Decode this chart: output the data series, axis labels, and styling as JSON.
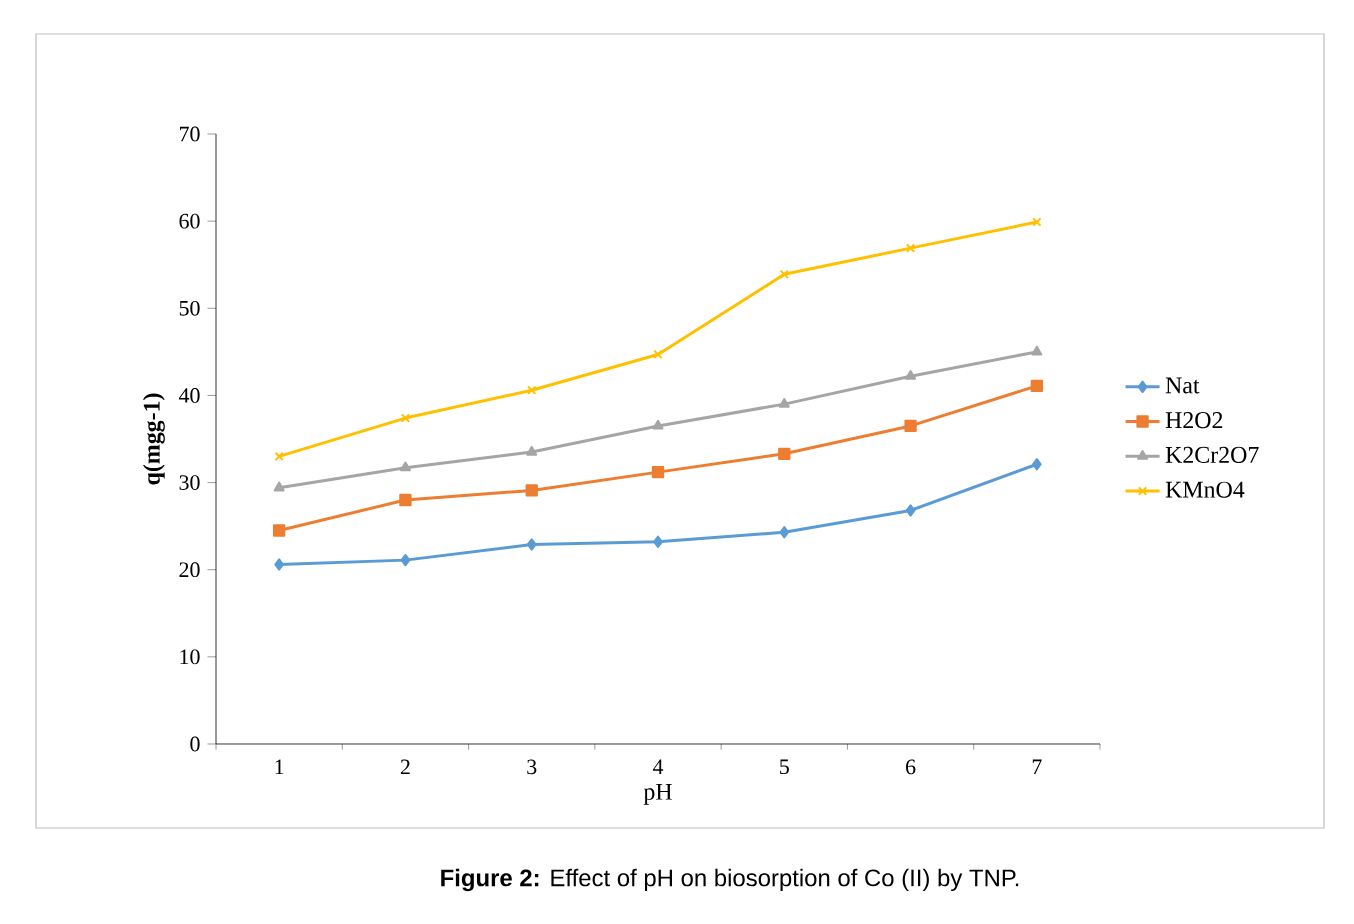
{
  "chart_data": {
    "type": "line",
    "xlabel": "pH",
    "ylabel": "q(mgg-1)",
    "categories": [
      "1",
      "2",
      "3",
      "4",
      "5",
      "6",
      "7"
    ],
    "series": [
      {
        "name": "Nat",
        "color": "#5b9bd5",
        "marker": "diamond",
        "values": [
          20.6,
          21.1,
          22.9,
          23.2,
          24.3,
          26.8,
          32.1
        ]
      },
      {
        "name": "H2O2",
        "color": "#ed7d31",
        "marker": "square",
        "values": [
          24.5,
          28.0,
          29.1,
          31.2,
          33.3,
          36.5,
          41.1
        ]
      },
      {
        "name": "K2Cr2O7",
        "color": "#a5a5a5",
        "marker": "triangle",
        "values": [
          29.4,
          31.7,
          33.5,
          36.5,
          39.0,
          42.2,
          45.0
        ]
      },
      {
        "name": "KMnO4",
        "color": "#ffc000",
        "marker": "cross",
        "values": [
          33.0,
          37.4,
          40.6,
          44.7,
          53.9,
          56.9,
          59.9
        ]
      }
    ],
    "ylim": [
      0,
      70
    ],
    "yticks": [
      0,
      10,
      20,
      30,
      40,
      50,
      60,
      70
    ],
    "grid": false,
    "legend": "right",
    "annotations": [
      "**Figure 2:** Effect of pH on biosorption of Co (II) by TNP."
    ]
  }
}
